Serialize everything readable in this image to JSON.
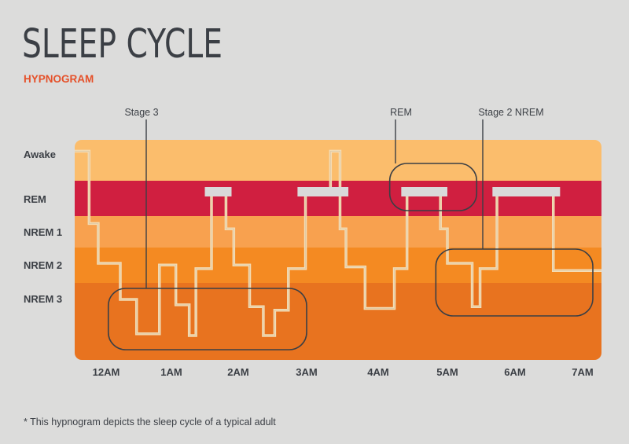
{
  "chart_data": {
    "type": "line",
    "title": "SLEEP CYCLE",
    "subtitle": "HYPNOGRAM",
    "footnote": "* This hypnogram depicts the sleep cycle of a typical adult",
    "y_categories": [
      "Awake",
      "REM",
      "NREM 1",
      "NREM 2",
      "NREM 3"
    ],
    "x_ticks": [
      "12AM",
      "1AM",
      "2AM",
      "3AM",
      "4AM",
      "5AM",
      "6AM",
      "7AM"
    ],
    "band_colors": [
      "#fbbd6c",
      "#d01f40",
      "#f8a14f",
      "#f48a22",
      "#e8731f"
    ],
    "line_color": "#f4dcb4",
    "rem_bar_color": "#d9d9d9",
    "step_series": [
      [
        "23:32",
        -0.1
      ],
      [
        "23:45",
        1.9
      ],
      [
        "23:53",
        3.0
      ],
      [
        "00:13",
        4.0
      ],
      [
        "00:28",
        4.95
      ],
      [
        "00:49",
        3.05
      ],
      [
        "01:04",
        4.15
      ],
      [
        "01:16",
        5.0
      ],
      [
        "01:22",
        3.15
      ],
      [
        "01:36",
        1.0
      ],
      [
        "01:49",
        2.05
      ],
      [
        "01:56",
        3.05
      ],
      [
        "02:10",
        4.2
      ],
      [
        "02:22",
        5.0
      ],
      [
        "02:32",
        4.3
      ],
      [
        "02:44",
        3.15
      ],
      [
        "02:59",
        1.0
      ],
      [
        "03:20",
        -0.1
      ],
      [
        "03:28",
        2.05
      ],
      [
        "03:33",
        3.1
      ],
      [
        "03:49",
        4.25
      ],
      [
        "04:14",
        3.15
      ],
      [
        "04:25",
        1.0
      ],
      [
        "04:54",
        2.05
      ],
      [
        "05:00",
        3.0
      ],
      [
        "05:22",
        4.2
      ],
      [
        "05:29",
        3.15
      ],
      [
        "05:44",
        1.0
      ],
      [
        "06:34",
        3.2
      ],
      [
        "07:16",
        3.2
      ]
    ],
    "rem_periods": [
      [
        "01:30",
        "01:54"
      ],
      [
        "02:52",
        "03:35"
      ],
      [
        "04:20",
        "05:00"
      ],
      [
        "05:40",
        "06:40"
      ]
    ],
    "annotations": [
      {
        "label": "Stage 3",
        "from": "00:02",
        "to": "03:00"
      },
      {
        "label": "REM",
        "from": "04:10",
        "to": "05:26"
      },
      {
        "label": "Stage 2 NREM",
        "from": "04:50",
        "to": "07:09"
      }
    ]
  }
}
